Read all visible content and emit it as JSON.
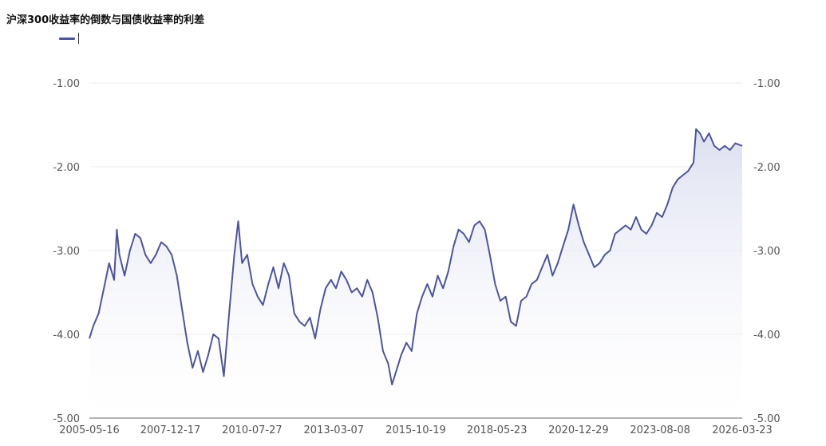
{
  "chart_data": {
    "type": "area",
    "title": "沪深300收益率的倒数与国债收益率的利差",
    "legend": {
      "placement": "top-left",
      "series_name": ""
    },
    "xlabel": "",
    "ylabel": "",
    "x_ticks": [
      "2005-05-16",
      "2007-12-17",
      "2010-07-27",
      "2013-03-07",
      "2015-10-19",
      "2018-05-23",
      "2020-12-29",
      "2023-08-08",
      "2026-03-23"
    ],
    "y_ticks": [
      "-1.00",
      "-2.00",
      "-3.00",
      "-4.00",
      "-5.00"
    ],
    "ylim": [
      -5.0,
      -1.0
    ],
    "xlim": [
      "2005-05-16",
      "2026-03-23"
    ],
    "grid": true,
    "dual_y_axis": true,
    "colors": {
      "line": "#4e5597",
      "area_top": "#d9dcef",
      "grid": "#ececec",
      "axis": "#888888"
    },
    "series": [
      {
        "name": "",
        "points": [
          [
            "2005-05-16",
            -4.05
          ],
          [
            "2005-07-01",
            -3.9
          ],
          [
            "2005-09-01",
            -3.75
          ],
          [
            "2005-11-01",
            -3.45
          ],
          [
            "2006-01-01",
            -3.15
          ],
          [
            "2006-03-01",
            -3.35
          ],
          [
            "2006-04-01",
            -2.75
          ],
          [
            "2006-05-01",
            -3.05
          ],
          [
            "2006-07-01",
            -3.3
          ],
          [
            "2006-09-01",
            -3.0
          ],
          [
            "2006-11-01",
            -2.8
          ],
          [
            "2007-01-01",
            -2.85
          ],
          [
            "2007-03-01",
            -3.05
          ],
          [
            "2007-05-01",
            -3.15
          ],
          [
            "2007-07-01",
            -3.05
          ],
          [
            "2007-09-01",
            -2.9
          ],
          [
            "2007-11-01",
            -2.95
          ],
          [
            "2008-01-01",
            -3.05
          ],
          [
            "2008-03-01",
            -3.3
          ],
          [
            "2008-05-01",
            -3.7
          ],
          [
            "2008-07-01",
            -4.1
          ],
          [
            "2008-09-01",
            -4.4
          ],
          [
            "2008-11-01",
            -4.2
          ],
          [
            "2009-01-01",
            -4.45
          ],
          [
            "2009-03-01",
            -4.25
          ],
          [
            "2009-05-01",
            -4.0
          ],
          [
            "2009-07-01",
            -4.05
          ],
          [
            "2009-09-01",
            -4.5
          ],
          [
            "2009-11-01",
            -3.75
          ],
          [
            "2010-01-01",
            -3.05
          ],
          [
            "2010-02-15",
            -2.65
          ],
          [
            "2010-04-01",
            -3.15
          ],
          [
            "2010-06-01",
            -3.05
          ],
          [
            "2010-08-01",
            -3.4
          ],
          [
            "2010-10-01",
            -3.55
          ],
          [
            "2010-12-01",
            -3.65
          ],
          [
            "2011-02-01",
            -3.4
          ],
          [
            "2011-04-01",
            -3.2
          ],
          [
            "2011-06-01",
            -3.45
          ],
          [
            "2011-08-01",
            -3.15
          ],
          [
            "2011-10-01",
            -3.3
          ],
          [
            "2011-12-01",
            -3.75
          ],
          [
            "2012-02-01",
            -3.85
          ],
          [
            "2012-04-01",
            -3.9
          ],
          [
            "2012-06-01",
            -3.8
          ],
          [
            "2012-08-01",
            -4.05
          ],
          [
            "2012-10-01",
            -3.7
          ],
          [
            "2012-12-01",
            -3.45
          ],
          [
            "2013-02-01",
            -3.35
          ],
          [
            "2013-04-01",
            -3.45
          ],
          [
            "2013-06-01",
            -3.25
          ],
          [
            "2013-08-01",
            -3.35
          ],
          [
            "2013-10-01",
            -3.5
          ],
          [
            "2013-12-01",
            -3.45
          ],
          [
            "2014-02-01",
            -3.55
          ],
          [
            "2014-04-01",
            -3.35
          ],
          [
            "2014-06-01",
            -3.5
          ],
          [
            "2014-08-01",
            -3.8
          ],
          [
            "2014-10-01",
            -4.2
          ],
          [
            "2014-12-01",
            -4.35
          ],
          [
            "2015-01-15",
            -4.6
          ],
          [
            "2015-03-01",
            -4.45
          ],
          [
            "2015-05-01",
            -4.25
          ],
          [
            "2015-07-01",
            -4.1
          ],
          [
            "2015-09-01",
            -4.2
          ],
          [
            "2015-11-01",
            -3.75
          ],
          [
            "2016-01-01",
            -3.55
          ],
          [
            "2016-03-01",
            -3.4
          ],
          [
            "2016-05-01",
            -3.55
          ],
          [
            "2016-07-01",
            -3.3
          ],
          [
            "2016-09-01",
            -3.45
          ],
          [
            "2016-11-01",
            -3.25
          ],
          [
            "2017-01-01",
            -2.95
          ],
          [
            "2017-03-01",
            -2.75
          ],
          [
            "2017-05-01",
            -2.8
          ],
          [
            "2017-07-01",
            -2.9
          ],
          [
            "2017-09-01",
            -2.7
          ],
          [
            "2017-11-01",
            -2.65
          ],
          [
            "2018-01-01",
            -2.75
          ],
          [
            "2018-03-01",
            -3.05
          ],
          [
            "2018-05-01",
            -3.4
          ],
          [
            "2018-07-01",
            -3.6
          ],
          [
            "2018-09-01",
            -3.55
          ],
          [
            "2018-11-01",
            -3.85
          ],
          [
            "2019-01-01",
            -3.9
          ],
          [
            "2019-03-01",
            -3.6
          ],
          [
            "2019-05-01",
            -3.55
          ],
          [
            "2019-07-01",
            -3.4
          ],
          [
            "2019-09-01",
            -3.35
          ],
          [
            "2019-11-01",
            -3.2
          ],
          [
            "2020-01-01",
            -3.05
          ],
          [
            "2020-03-01",
            -3.3
          ],
          [
            "2020-05-01",
            -3.15
          ],
          [
            "2020-07-01",
            -2.95
          ],
          [
            "2020-09-01",
            -2.75
          ],
          [
            "2020-11-01",
            -2.45
          ],
          [
            "2021-01-01",
            -2.7
          ],
          [
            "2021-03-01",
            -2.9
          ],
          [
            "2021-05-01",
            -3.05
          ],
          [
            "2021-07-01",
            -3.2
          ],
          [
            "2021-09-01",
            -3.15
          ],
          [
            "2021-11-01",
            -3.05
          ],
          [
            "2022-01-01",
            -3.0
          ],
          [
            "2022-03-01",
            -2.8
          ],
          [
            "2022-05-01",
            -2.75
          ],
          [
            "2022-07-01",
            -2.7
          ],
          [
            "2022-09-01",
            -2.75
          ],
          [
            "2022-11-01",
            -2.6
          ],
          [
            "2023-01-01",
            -2.75
          ],
          [
            "2023-03-01",
            -2.8
          ],
          [
            "2023-05-01",
            -2.7
          ],
          [
            "2023-07-01",
            -2.55
          ],
          [
            "2023-09-01",
            -2.6
          ],
          [
            "2023-11-01",
            -2.45
          ],
          [
            "2024-01-01",
            -2.25
          ],
          [
            "2024-03-01",
            -2.15
          ],
          [
            "2024-05-01",
            -2.1
          ],
          [
            "2024-07-01",
            -2.05
          ],
          [
            "2024-09-01",
            -1.95
          ],
          [
            "2024-10-01",
            -1.55
          ],
          [
            "2024-11-15",
            -1.6
          ],
          [
            "2025-01-01",
            -1.7
          ],
          [
            "2025-03-01",
            -1.6
          ],
          [
            "2025-05-01",
            -1.75
          ],
          [
            "2025-07-01",
            -1.8
          ],
          [
            "2025-09-01",
            -1.75
          ],
          [
            "2025-11-01",
            -1.8
          ],
          [
            "2026-01-01",
            -1.72
          ],
          [
            "2026-03-23",
            -1.75
          ]
        ]
      }
    ]
  }
}
